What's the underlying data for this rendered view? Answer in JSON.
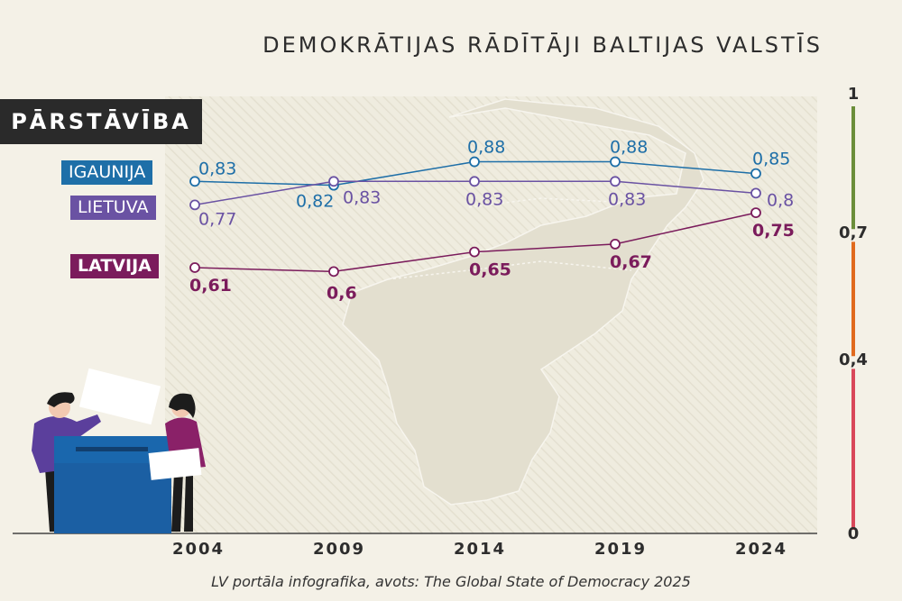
{
  "header": {
    "title": "DEMOKRĀTIJAS RĀDĪTĀJI BALTIJAS VALSTĪS"
  },
  "badge": {
    "label": "PĀRSTĀVĪBA"
  },
  "legend": {
    "igaunija": "IGAUNIJA",
    "lietuva": "LIETUVA",
    "latvija": "LATVIJA"
  },
  "footer": {
    "source": "LV portāla infografika, avots: The Global State of Democracy 2025"
  },
  "colors": {
    "igaunija": "#1e6fa8",
    "lietuva": "#6a52a3",
    "latvija": "#7b1c5c",
    "scale_high": "#6b8e3a",
    "scale_mid": "#e06a1e",
    "scale_low": "#d9485a"
  },
  "chart_data": {
    "type": "line",
    "title": "DEMOKRĀTIJAS RĀDĪTĀJI BALTIJAS VALSTĪS",
    "subtitle": "PĀRSTĀVĪBA",
    "xlabel": "",
    "ylabel": "",
    "categories": [
      "2004",
      "2009",
      "2014",
      "2019",
      "2024"
    ],
    "ylim": [
      0,
      1
    ],
    "scale_ticks": [
      "1",
      "0,7",
      "0,4",
      "0"
    ],
    "series": [
      {
        "name": "IGAUNIJA",
        "values": [
          0.83,
          0.82,
          0.88,
          0.88,
          0.85
        ],
        "labels": [
          "0,83",
          "0,82",
          "0,88",
          "0,88",
          "0,85"
        ]
      },
      {
        "name": "LIETUVA",
        "values": [
          0.77,
          0.83,
          0.83,
          0.83,
          0.8
        ],
        "labels": [
          "0,77",
          "0,83",
          "0,83",
          "0,83",
          "0,8"
        ]
      },
      {
        "name": "LATVIJA",
        "values": [
          0.61,
          0.6,
          0.65,
          0.67,
          0.75
        ],
        "labels": [
          "0,61",
          "0,6",
          "0,65",
          "0,67",
          "0,75"
        ]
      }
    ]
  }
}
